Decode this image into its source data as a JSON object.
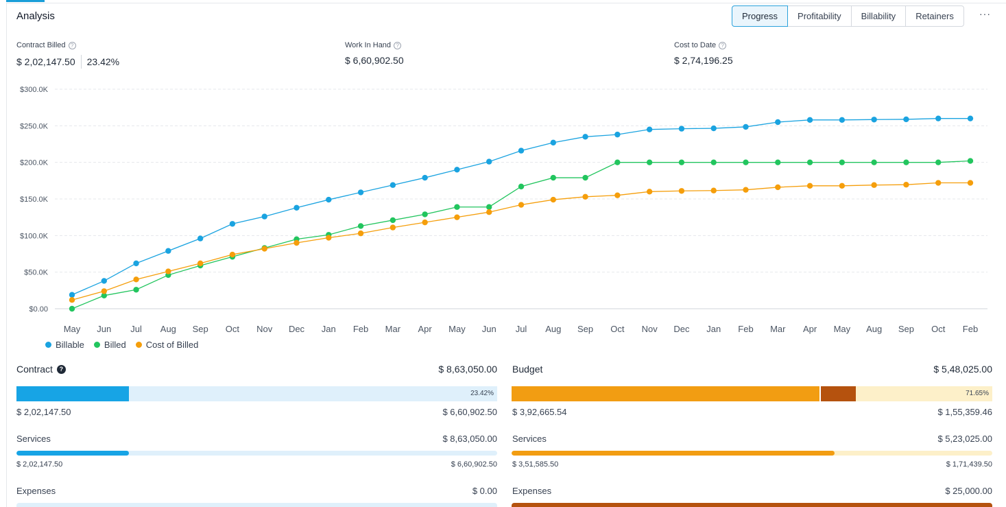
{
  "header": {
    "title": "Analysis",
    "tabs": [
      "Progress",
      "Profitability",
      "Billability",
      "Retainers"
    ],
    "active_tab": "Progress",
    "more_label": "···"
  },
  "kpis": {
    "contract_billed": {
      "label": "Contract Billed",
      "value": "$ 2,02,147.50",
      "percent": "23.42%"
    },
    "work_in_hand": {
      "label": "Work In Hand",
      "value": "$ 6,60,902.50"
    },
    "cost_to_date": {
      "label": "Cost to Date",
      "value": "$ 2,74,196.25"
    }
  },
  "icons": {
    "help": "help-circle-icon",
    "info": "info-icon",
    "more": "more-horizontal-icon"
  },
  "colors": {
    "billable": "#1aa3e0",
    "billed": "#22c55e",
    "cost_of_billed": "#f59e0b",
    "budget_dark": "#b5520e",
    "contract_light": "#dff0fb",
    "budget_light": "#fdf0c9"
  },
  "chart_data": {
    "type": "line",
    "categories": [
      "May",
      "Jun",
      "Jul",
      "Aug",
      "Sep",
      "Oct",
      "Nov",
      "Dec",
      "Jan",
      "Feb",
      "Mar",
      "Apr",
      "May",
      "Jun",
      "Jul",
      "Aug",
      "Sep",
      "Oct",
      "Nov",
      "Dec",
      "Jan",
      "Feb",
      "Mar",
      "Apr",
      "May",
      "Aug",
      "Sep",
      "Oct",
      "Feb"
    ],
    "y_ticks": [
      "$0.00",
      "$50.0K",
      "$100.0K",
      "$150.0K",
      "$200.0K",
      "$250.0K",
      "$300.0K"
    ],
    "ylim": [
      0,
      300000
    ],
    "grid": true,
    "legend_position": "bottom-left",
    "series": [
      {
        "name": "Billable",
        "color": "#1aa3e0",
        "values": [
          19000,
          38000,
          62000,
          79000,
          96000,
          116000,
          126000,
          138000,
          149000,
          159000,
          169000,
          179000,
          190000,
          201000,
          216000,
          227000,
          235000,
          238000,
          245000,
          246000,
          246500,
          248500,
          255000,
          258000,
          258000,
          258500,
          258800,
          260000,
          260000
        ]
      },
      {
        "name": "Billed",
        "color": "#22c55e",
        "values": [
          0,
          18000,
          26000,
          46000,
          59000,
          71000,
          83000,
          95000,
          101000,
          113000,
          121000,
          129000,
          139000,
          139000,
          167000,
          179000,
          179000,
          200000,
          200000,
          200000,
          200000,
          200000,
          200000,
          200000,
          200000,
          200000,
          200000,
          200000,
          202000
        ]
      },
      {
        "name": "Cost of Billed",
        "color": "#f59e0b",
        "values": [
          12000,
          24000,
          40000,
          51000,
          62000,
          74000,
          82000,
          90000,
          97000,
          103000,
          111000,
          118000,
          125000,
          132000,
          142000,
          149000,
          153000,
          155000,
          160000,
          161000,
          161500,
          162500,
          166000,
          168000,
          168000,
          169000,
          169500,
          172000,
          172000
        ]
      }
    ]
  },
  "contract": {
    "title": "Contract",
    "total": "$ 8,63,050.00",
    "percent_label": "23.42%",
    "fill_fraction": 0.2342,
    "left_value": "$ 2,02,147.50",
    "right_value": "$ 6,60,902.50",
    "services": {
      "label": "Services",
      "total": "$ 8,63,050.00",
      "fill_fraction": 0.2342,
      "left_value": "$ 2,02,147.50",
      "right_value": "$ 6,60,902.50"
    },
    "expenses": {
      "label": "Expenses",
      "total": "$ 0.00"
    }
  },
  "budget": {
    "title": "Budget",
    "total": "$ 5,48,025.00",
    "percent_label": "71.65%",
    "fill_fraction": 0.641,
    "dark_fraction": 0.0754,
    "left_value": "$ 3,92,665.54",
    "right_value": "$ 1,55,359.46",
    "services": {
      "label": "Services",
      "total": "$ 5,23,025.00",
      "fill_fraction": 0.6722,
      "left_value": "$ 3,51,585.50",
      "right_value": "$ 1,71,439.50"
    },
    "expenses": {
      "label": "Expenses",
      "total": "$ 25,000.00"
    }
  }
}
